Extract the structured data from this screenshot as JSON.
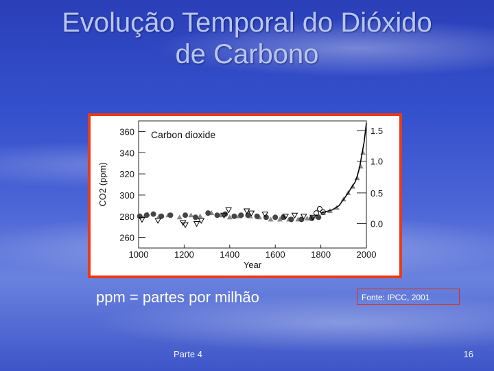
{
  "slide": {
    "title_line1": "Evolução Temporal do Dióxido",
    "title_line2": "de Carbono",
    "note": "ppm = partes por milhão",
    "source": "Fonte: IPCC, 2001",
    "footer_left": "Parte 4",
    "page_number": "16"
  },
  "chart_data": {
    "type": "scatter",
    "title": "Carbon dioxide",
    "xlabel": "Year",
    "ylabel": "CO2 (ppm)",
    "y2label": "",
    "xlim": [
      1000,
      2000
    ],
    "ylim": [
      250,
      370
    ],
    "x_ticks": [
      1000,
      1200,
      1400,
      1600,
      1800,
      2000
    ],
    "y_ticks": [
      260,
      280,
      300,
      320,
      340,
      360
    ],
    "y2_ticks": [
      "1.5",
      "1.0",
      "0.5",
      "0.0"
    ],
    "y2_tick_values_ppm": [
      361,
      332,
      302,
      273
    ],
    "grid": false,
    "colors": {
      "frame": "#ea3b16",
      "triangles": "#888888",
      "circles": "#444444",
      "open_markers": "#000000",
      "line": "#000000"
    },
    "series": [
      {
        "marker": "filled-triangle",
        "x": [
          1010,
          1040,
          1090,
          1130,
          1180,
          1230,
          1270,
          1320,
          1360,
          1400,
          1440,
          1490,
          1530,
          1580,
          1620,
          1660,
          1700,
          1740,
          1780,
          1810,
          1840,
          1870,
          1900,
          1920,
          1940,
          1960,
          1975,
          1985
        ],
        "y": [
          280,
          282,
          280,
          281,
          279,
          281,
          280,
          283,
          281,
          279,
          280,
          280,
          279,
          277,
          277,
          277,
          277,
          278,
          280,
          283,
          285,
          288,
          296,
          302,
          308,
          316,
          327,
          340
        ]
      },
      {
        "marker": "filled-circle",
        "x": [
          1005,
          1035,
          1065,
          1100,
          1140,
          1205,
          1250,
          1305,
          1345,
          1380,
          1420,
          1450,
          1480,
          1520,
          1560,
          1600,
          1635,
          1670,
          1715,
          1760,
          1790
        ],
        "y": [
          280,
          281,
          282,
          280,
          281,
          281,
          279,
          283,
          281,
          282,
          280,
          281,
          281,
          280,
          279,
          279,
          279,
          277,
          277,
          278,
          279
        ]
      },
      {
        "marker": "open-triangle-down",
        "x": [
          1015,
          1085,
          1195,
          1205,
          1255,
          1275,
          1375,
          1395,
          1475,
          1495,
          1555,
          1645,
          1685,
          1725,
          1765
        ],
        "y": [
          277,
          276,
          274,
          272,
          273,
          276,
          281,
          286,
          285,
          283,
          282,
          280,
          281,
          280,
          279
        ]
      },
      {
        "marker": "open-circle",
        "x": [
          1780,
          1795,
          1810
        ],
        "y": [
          283,
          287,
          284
        ]
      },
      {
        "marker": "line",
        "x": [
          1800,
          1850,
          1880,
          1900,
          1920,
          1940,
          1950,
          1960,
          1970,
          1980,
          1990,
          2000
        ],
        "y": [
          283,
          286,
          290,
          296,
          302,
          309,
          312,
          318,
          326,
          338,
          350,
          368
        ]
      }
    ]
  }
}
